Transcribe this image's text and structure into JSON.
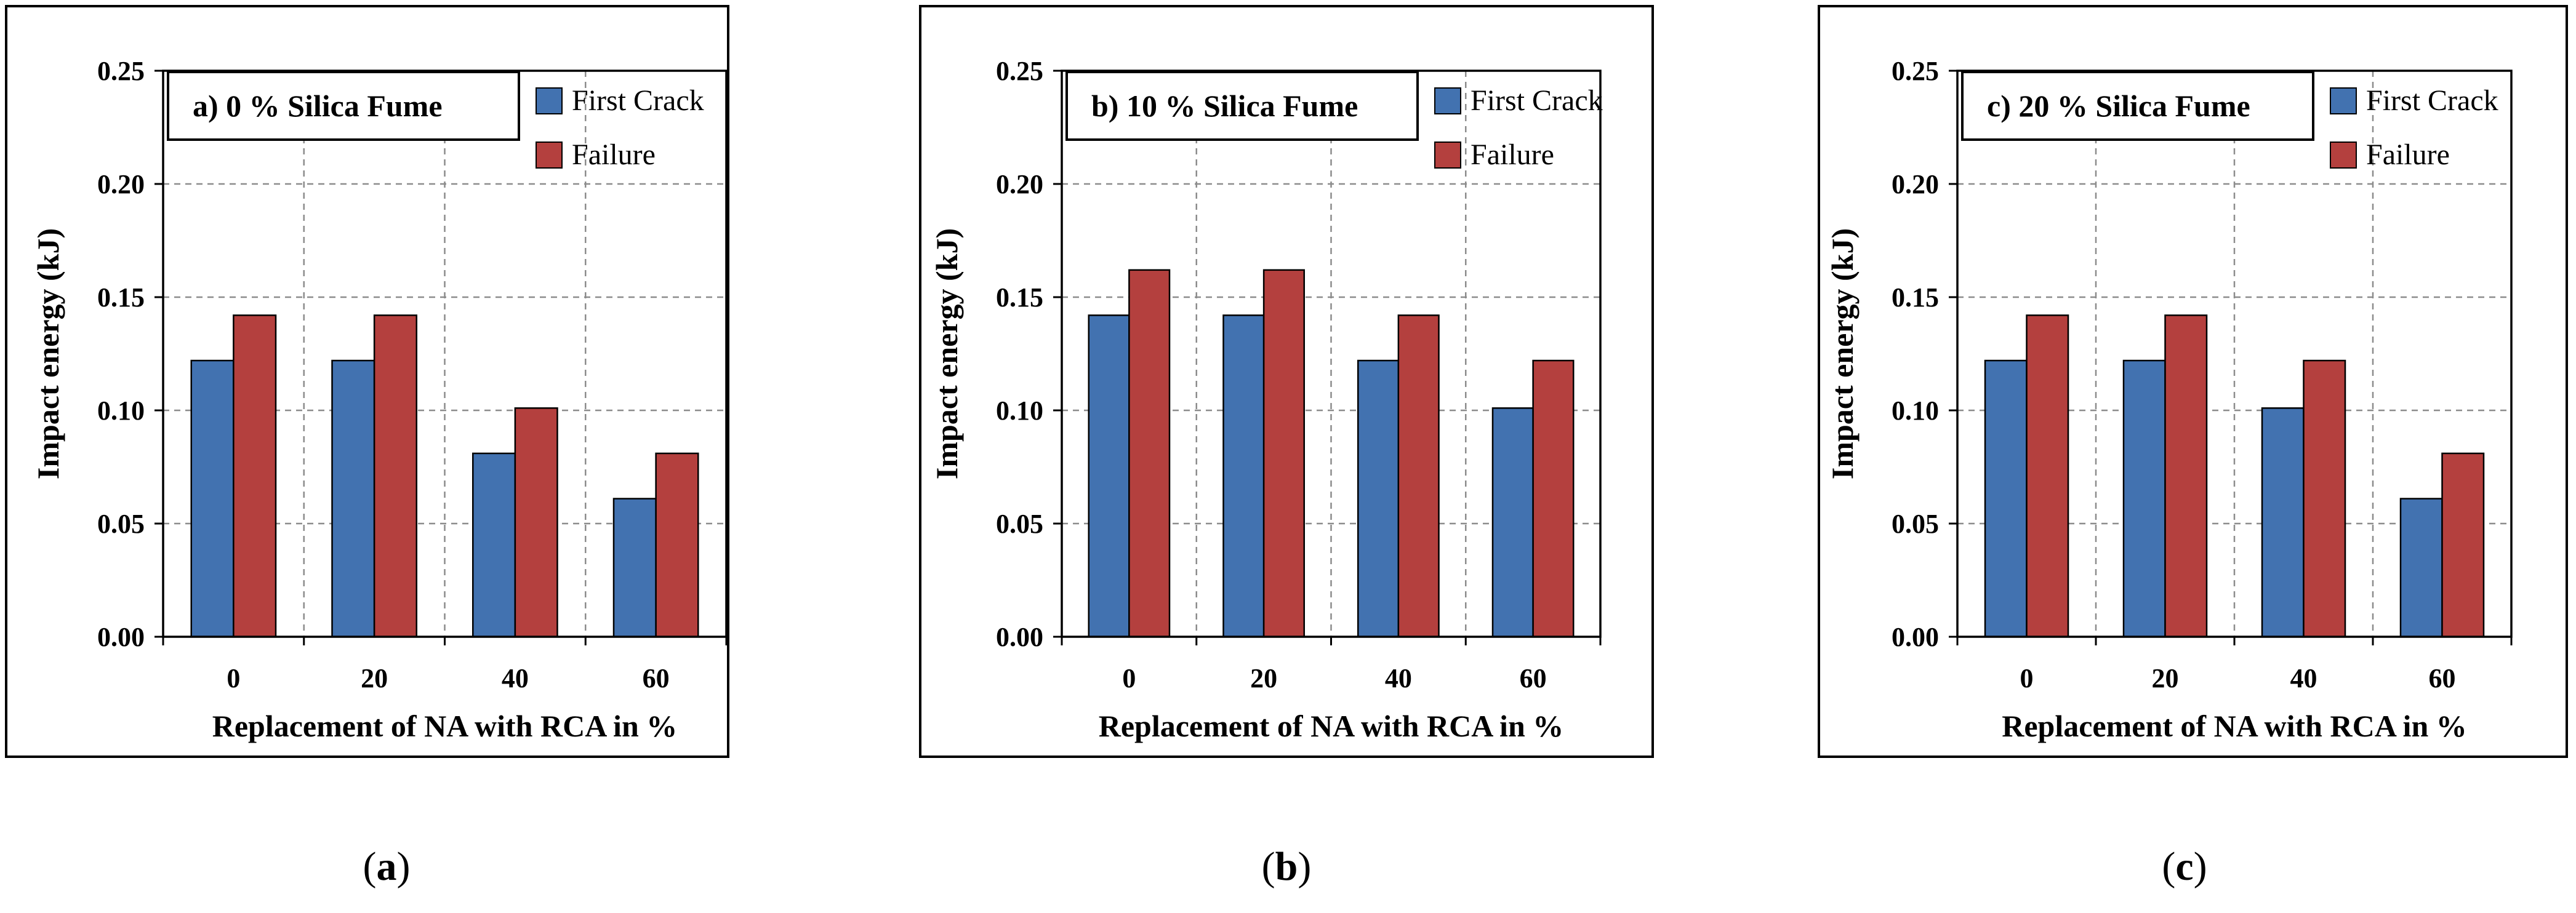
{
  "chart_data": [
    {
      "type": "bar",
      "title": "a) 0 % Silica Fume",
      "xlabel": "Replacement of NA with RCA in %",
      "ylabel": "Impact energy  (kJ)",
      "categories": [
        "0",
        "20",
        "40",
        "60"
      ],
      "ylim": [
        0,
        0.25
      ],
      "yticks": [
        "0.00",
        "0.05",
        "0.10",
        "0.15",
        "0.20",
        "0.25"
      ],
      "grid": true,
      "legend_position": "top-right",
      "series": [
        {
          "name": "First Crack",
          "color": "#4272B0",
          "values": [
            0.122,
            0.122,
            0.081,
            0.061
          ]
        },
        {
          "name": "Failure",
          "color": "#B4403E",
          "values": [
            0.142,
            0.142,
            0.101,
            0.081
          ]
        }
      ],
      "caption_letter": "a"
    },
    {
      "type": "bar",
      "title": "b) 10 % Silica Fume",
      "xlabel": "Replacement of NA with RCA in %",
      "ylabel": "Impact energy  (kJ)",
      "categories": [
        "0",
        "20",
        "40",
        "60"
      ],
      "ylim": [
        0,
        0.25
      ],
      "yticks": [
        "0.00",
        "0.05",
        "0.10",
        "0.15",
        "0.20",
        "0.25"
      ],
      "grid": true,
      "legend_position": "top-right",
      "series": [
        {
          "name": "First Crack",
          "color": "#4272B0",
          "values": [
            0.142,
            0.142,
            0.122,
            0.101
          ]
        },
        {
          "name": "Failure",
          "color": "#B4403E",
          "values": [
            0.162,
            0.162,
            0.142,
            0.122
          ]
        }
      ],
      "caption_letter": "b"
    },
    {
      "type": "bar",
      "title": "c) 20 % Silica Fume",
      "xlabel": "Replacement of NA with RCA in %",
      "ylabel": "Impact energy  (kJ)",
      "categories": [
        "0",
        "20",
        "40",
        "60"
      ],
      "ylim": [
        0,
        0.25
      ],
      "yticks": [
        "0.00",
        "0.05",
        "0.10",
        "0.15",
        "0.20",
        "0.25"
      ],
      "grid": true,
      "legend_position": "top-right",
      "series": [
        {
          "name": "First Crack",
          "color": "#4272B0",
          "values": [
            0.122,
            0.122,
            0.101,
            0.061
          ]
        },
        {
          "name": "Failure",
          "color": "#B4403E",
          "values": [
            0.142,
            0.142,
            0.122,
            0.081
          ]
        }
      ],
      "caption_letter": "c"
    }
  ]
}
